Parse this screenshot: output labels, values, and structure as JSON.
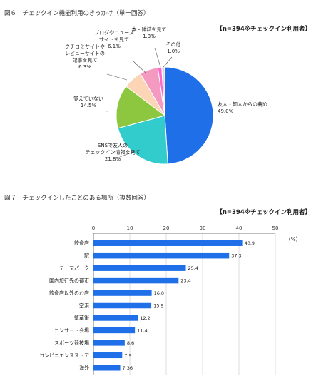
{
  "figure6": {
    "title": "図６　チェックイン機能利用のきっかけ（単一回答）",
    "note": "【n=394※チェックイン利用者】"
  },
  "figure7": {
    "title": "図７　チェックインしたことのある場所（複数回答）",
    "note": "【n=394※チェックイン利用者】",
    "unit_label": "（%）"
  },
  "chart_data": [
    {
      "type": "pie",
      "title": "図６　チェックイン機能利用のきっかけ（単一回答）",
      "slices": [
        {
          "label": [
            "友人・知人からの薦め"
          ],
          "value": 49.0,
          "value_label": "49.0%",
          "color": "#1f6fe8"
        },
        {
          "label": [
            "SNSで友人の",
            "チェックイン情報を見て"
          ],
          "value": 21.8,
          "value_label": "21.8%",
          "color": "#33cccc"
        },
        {
          "label": [
            "覚えていない"
          ],
          "value": 14.5,
          "value_label": "14.5%",
          "color": "#8dc63f"
        },
        {
          "label": [
            "クチコミサイトや",
            "レビューサイトの",
            "記事を見て"
          ],
          "value": 6.3,
          "value_label": "6.3%",
          "color": "#fbd5b5"
        },
        {
          "label": [
            "ブログやニュース",
            "サイトを見て"
          ],
          "value": 6.1,
          "value_label": "6.1%",
          "color": "#f49ac1"
        },
        {
          "label": [
            "本・雑誌を見て"
          ],
          "value": 1.3,
          "value_label": "1.3%",
          "color": "#ff66cc"
        },
        {
          "label": [
            "その他"
          ],
          "value": 1.0,
          "value_label": "1.0%",
          "color": "#d9d9d9"
        }
      ]
    },
    {
      "type": "bar",
      "orientation": "horizontal",
      "title": "図７　チェックインしたことのある場所（複数回答）",
      "categories": [
        "飲食店",
        "駅",
        "テーマパーク",
        "国内旅行先の都市",
        "飲食店以外のお店",
        "空港",
        "繁華街",
        "コンサート会場",
        "スポーツ競技場",
        "コンビニエンスストア",
        "海外"
      ],
      "values": [
        40.9,
        37.3,
        25.4,
        23.4,
        16.0,
        15.9,
        12.2,
        11.4,
        8.6,
        7.9,
        7.36
      ],
      "value_labels": [
        "40.9",
        "37.3",
        "25.4",
        "23.4",
        "16.0",
        "15.9",
        "12.2",
        "11.4",
        "8.6",
        "7.9",
        "7.36"
      ],
      "xlim": [
        0,
        50
      ],
      "xticks": [
        0,
        10,
        20,
        30,
        40,
        50
      ],
      "bar_color": "#1f6fe8",
      "grid": true
    }
  ]
}
